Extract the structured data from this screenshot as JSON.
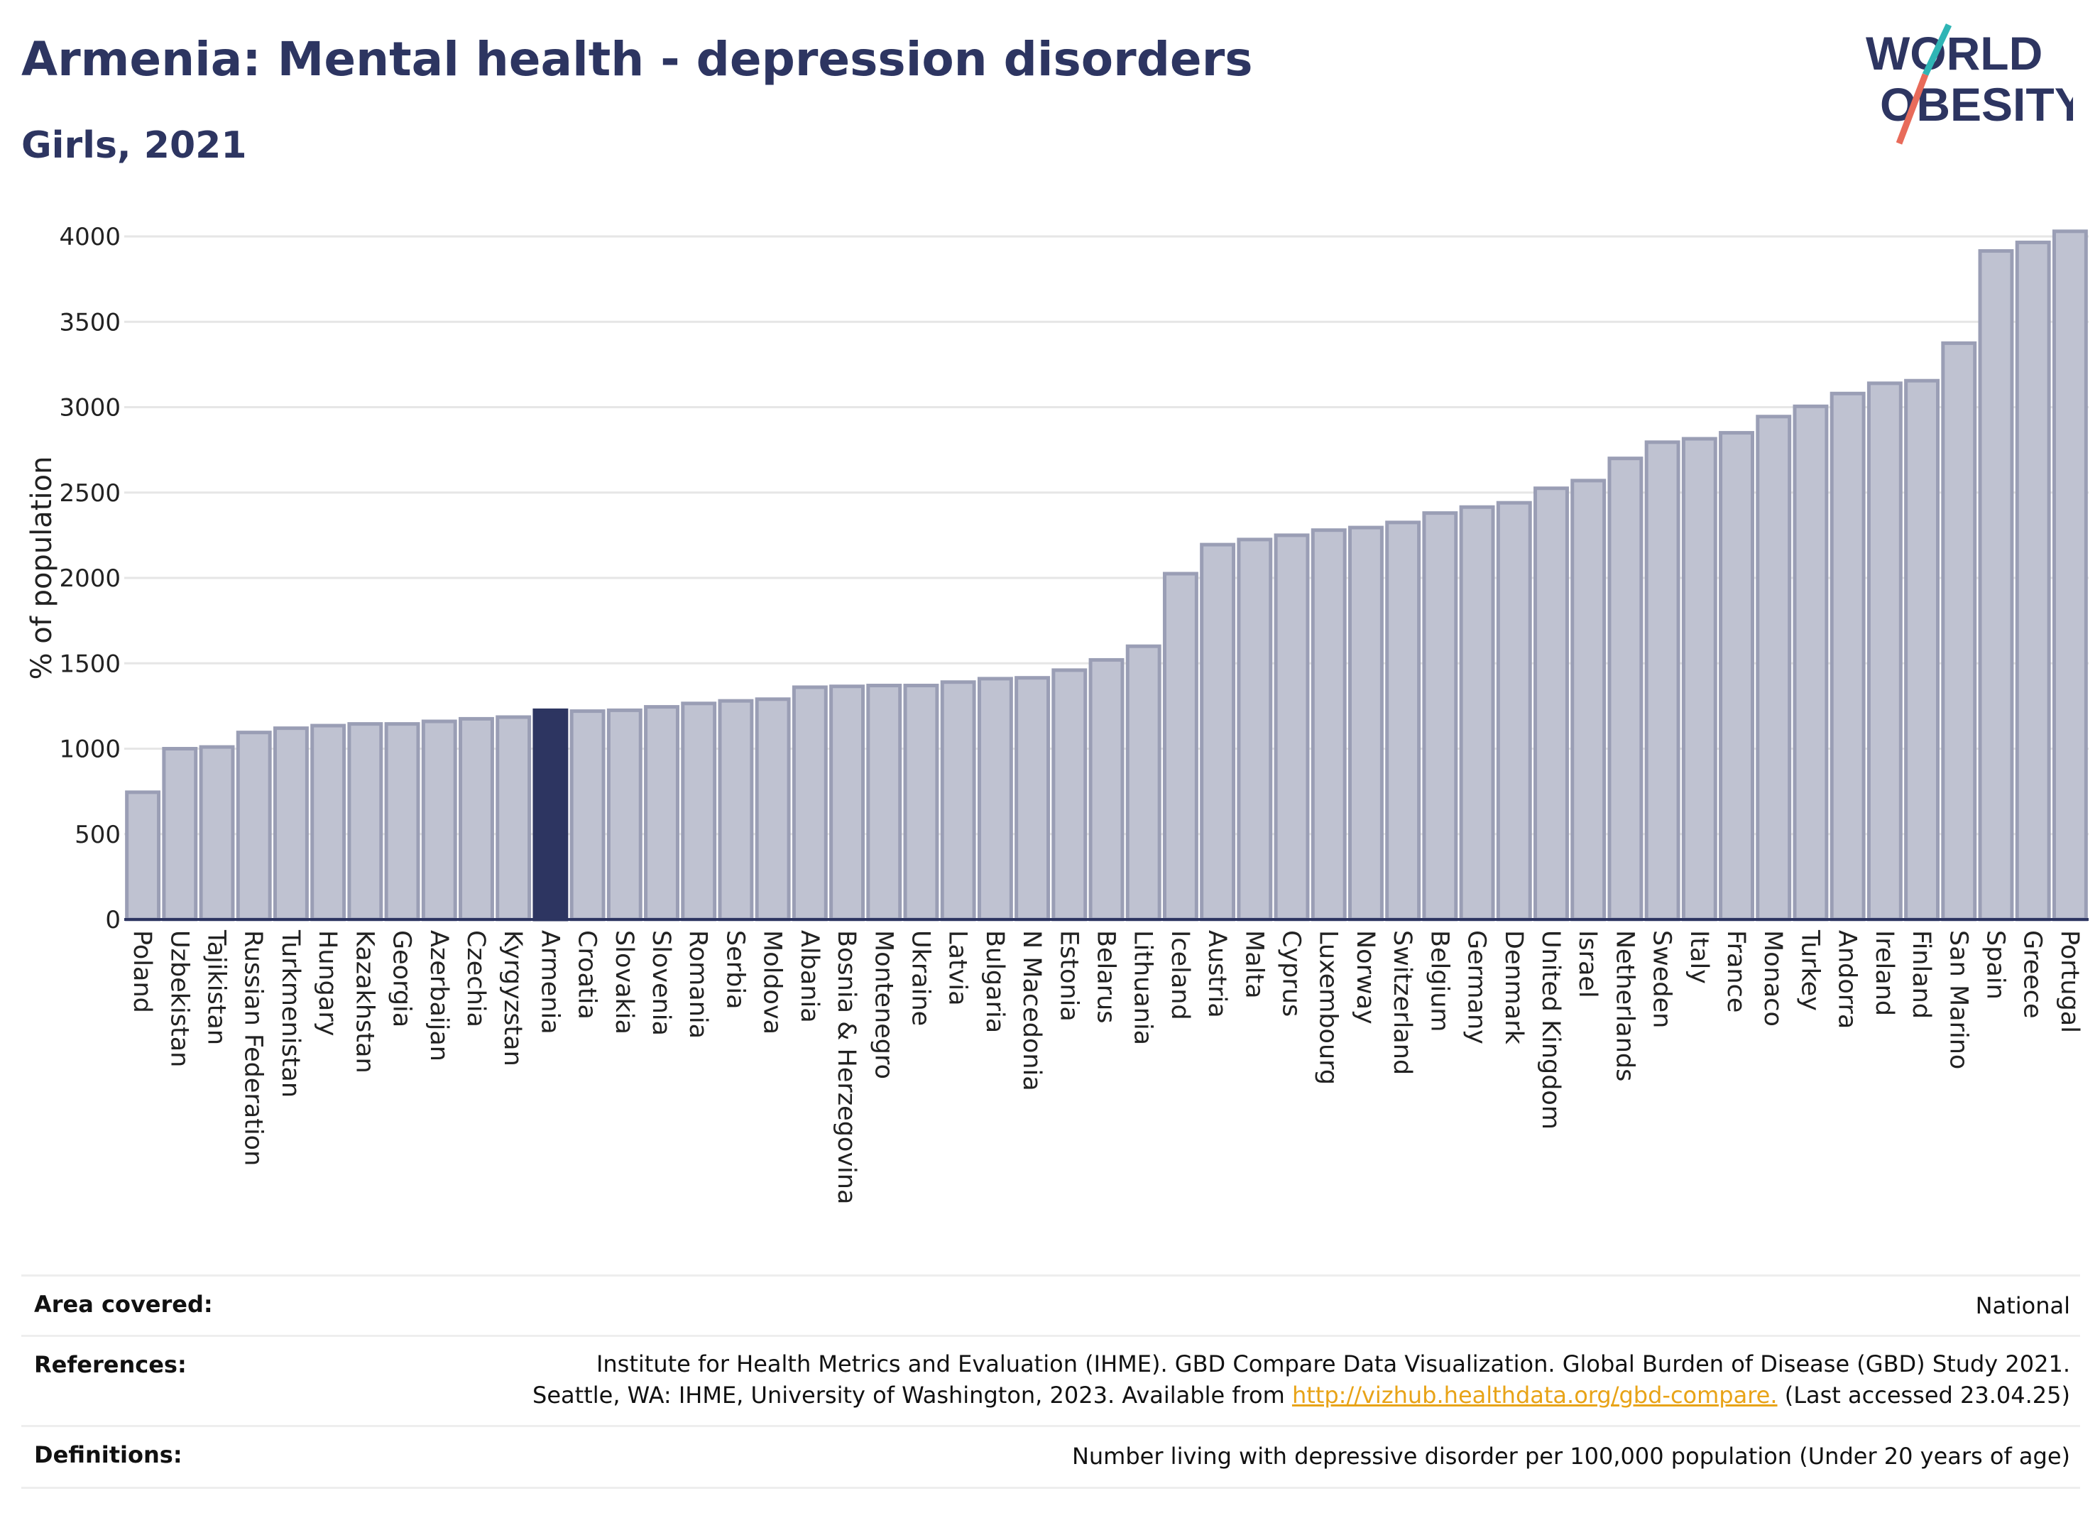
{
  "header": {
    "title": "Armenia: Mental health - depression disorders",
    "subtitle": "Girls, 2021"
  },
  "logo": {
    "line1": "WORLD",
    "line2": "OBESITY"
  },
  "colors": {
    "bar": "#bfc2d1",
    "bar_border": "#9a9eb5",
    "highlight": "#2d3561",
    "axis": "#2d3561",
    "grid": "#e6e6e6",
    "logo_teal": "#2fb5b5",
    "logo_red": "#e86b5a",
    "link": "#e8a317"
  },
  "chart_data": {
    "type": "bar",
    "ylabel": "% of population",
    "ylim": [
      0,
      4100
    ],
    "yticks": [
      0,
      500,
      1000,
      1500,
      2000,
      2500,
      3000,
      3500,
      4000
    ],
    "grid": true,
    "highlight": "Armenia",
    "categories": [
      "Poland",
      "Uzbekistan",
      "Tajikistan",
      "Russian Federation",
      "Turkmenistan",
      "Hungary",
      "Kazakhstan",
      "Georgia",
      "Azerbaijan",
      "Czechia",
      "Kyrgyzstan",
      "Armenia",
      "Croatia",
      "Slovakia",
      "Slovenia",
      "Romania",
      "Serbia",
      "Moldova",
      "Albania",
      "Bosnia & Herzegovina",
      "Montenegro",
      "Ukraine",
      "Latvia",
      "Bulgaria",
      "N Macedonia",
      "Estonia",
      "Belarus",
      "Lithuania",
      "Iceland",
      "Austria",
      "Malta",
      "Cyprus",
      "Luxembourg",
      "Norway",
      "Switzerland",
      "Belgium",
      "Germany",
      "Denmark",
      "United Kingdom",
      "Israel",
      "Netherlands",
      "Sweden",
      "Italy",
      "France",
      "Monaco",
      "Turkey",
      "Andorra",
      "Ireland",
      "Finland",
      "San Marino",
      "Spain",
      "Greece",
      "Portugal"
    ],
    "values": [
      745,
      1000,
      1010,
      1095,
      1120,
      1135,
      1145,
      1145,
      1160,
      1175,
      1185,
      1225,
      1220,
      1225,
      1245,
      1265,
      1280,
      1290,
      1360,
      1365,
      1370,
      1370,
      1390,
      1410,
      1415,
      1460,
      1520,
      1600,
      2025,
      2195,
      2225,
      2250,
      2280,
      2295,
      2325,
      2380,
      2415,
      2440,
      2525,
      2570,
      2700,
      2795,
      2815,
      2850,
      2945,
      3005,
      3080,
      3140,
      3155,
      3375,
      3915,
      3965,
      4030
    ]
  },
  "footer": {
    "area": {
      "label": "Area covered:",
      "value": "National"
    },
    "references": {
      "label": "References:",
      "line1": "Institute for Health Metrics and Evaluation (IHME). GBD Compare Data Visualization. Global Burden of Disease (GBD) Study 2021.",
      "line2_prefix": "Seattle, WA: IHME, University of Washington, 2023. Available from",
      "link": "http://vizhub.healthdata.org/gbd-compare.",
      "line2_suffix": "(Last accessed 23.04.25)"
    },
    "definitions": {
      "label": "Definitions:",
      "value": "Number living with depressive disorder per 100,000 population (Under 20 years of age)"
    }
  }
}
